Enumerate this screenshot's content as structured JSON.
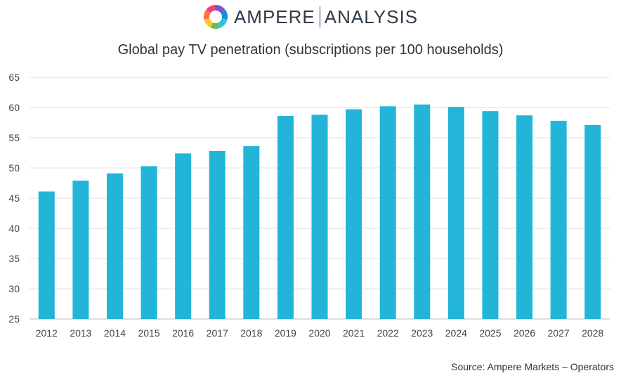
{
  "logo": {
    "brand": "AMPERE",
    "sub": "ANALYSIS",
    "colors": [
      "#7e57c2",
      "#1e88e5",
      "#26c6da",
      "#66bb6a",
      "#ffca28",
      "#ff7043",
      "#ec407a"
    ]
  },
  "chart_data": {
    "type": "bar",
    "title": "Global pay TV penetration (subscriptions per 100 households)",
    "categories": [
      "2012",
      "2013",
      "2014",
      "2015",
      "2016",
      "2017",
      "2018",
      "2019",
      "2020",
      "2021",
      "2022",
      "2023",
      "2024",
      "2025",
      "2026",
      "2027",
      "2028"
    ],
    "values": [
      46.1,
      47.9,
      49.1,
      50.3,
      52.4,
      52.8,
      53.6,
      58.6,
      58.8,
      59.7,
      60.2,
      60.5,
      60.1,
      59.4,
      58.7,
      57.8,
      57.1
    ],
    "ylim": [
      25,
      65
    ],
    "yticks": [
      25,
      30,
      35,
      40,
      45,
      50,
      55,
      60,
      65
    ],
    "grid": true,
    "bar_color": "#22b5d8"
  },
  "source": "Source: Ampere Markets – Operators"
}
